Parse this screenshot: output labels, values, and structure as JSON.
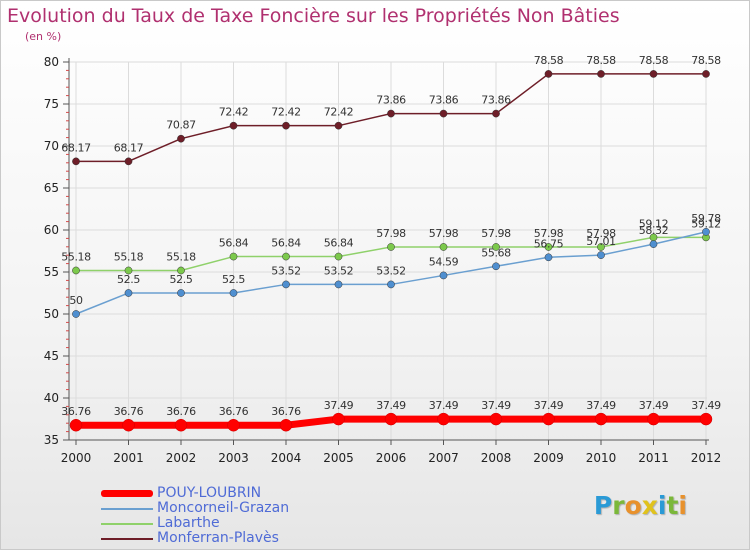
{
  "title": "Evolution du Taux de Taxe Foncière sur les Propriétés Non Bâties",
  "unit": "(en %)",
  "logo": {
    "letters": [
      {
        "ch": "P",
        "color": "#2a9ad6"
      },
      {
        "ch": "r",
        "color": "#7bb83a"
      },
      {
        "ch": "o",
        "color": "#e8912c"
      },
      {
        "ch": "x",
        "color": "#e0c21c"
      },
      {
        "ch": "i",
        "color": "#2a9ad6"
      },
      {
        "ch": "t",
        "color": "#7bb83a"
      },
      {
        "ch": "i",
        "color": "#e8912c"
      }
    ]
  },
  "chart_data": {
    "type": "line",
    "title": "Evolution du Taux de Taxe Foncière sur les Propriétés Non Bâties",
    "ylabel": "(en %)",
    "xlabel": "",
    "x": [
      "2000",
      "2001",
      "2002",
      "2003",
      "2004",
      "2005",
      "2006",
      "2007",
      "2008",
      "2009",
      "2010",
      "2011",
      "2012"
    ],
    "ylim": [
      35,
      80
    ],
    "yticks": [
      "35",
      "40",
      "45",
      "50",
      "55",
      "60",
      "65",
      "70",
      "75",
      "80"
    ],
    "grid": true,
    "legend": "bottom-left",
    "series": [
      {
        "name": "POUY-LOUBRIN",
        "color": "#ff0000",
        "values": [
          36.76,
          36.76,
          36.76,
          36.76,
          36.76,
          37.49,
          37.49,
          37.49,
          37.49,
          37.49,
          37.49,
          37.49,
          37.49
        ],
        "labels": [
          "36.76",
          "36.76",
          "36.76",
          "36.76",
          "36.76",
          "37.49",
          "37.49",
          "37.49",
          "37.49",
          "37.49",
          "37.49",
          "37.49",
          "37.49"
        ]
      },
      {
        "name": "Moncorneil-Grazan",
        "color": "#6a9fd0",
        "values": [
          50,
          52.5,
          52.5,
          52.5,
          53.52,
          53.52,
          53.52,
          54.59,
          55.68,
          56.75,
          57.01,
          58.32,
          59.78
        ],
        "labels": [
          "50",
          "52.5",
          "52.5",
          "52.5",
          "53.52",
          "53.52",
          "53.52",
          "54.59",
          "55.68",
          "56.75",
          "57.01",
          "58.32",
          "59.78"
        ]
      },
      {
        "name": "Labarthe",
        "color": "#8fd16a",
        "values": [
          55.18,
          55.18,
          55.18,
          56.84,
          56.84,
          56.84,
          57.98,
          57.98,
          57.98,
          57.98,
          57.98,
          59.12,
          59.12
        ],
        "labels": [
          "55.18",
          "55.18",
          "55.18",
          "56.84",
          "56.84",
          "56.84",
          "57.98",
          "57.98",
          "57.98",
          "57.98",
          "57.98",
          "59.12",
          "59.12"
        ]
      },
      {
        "name": "Monferran-Plavès",
        "color": "#6e1e28",
        "values": [
          68.17,
          68.17,
          70.87,
          72.42,
          72.42,
          72.42,
          73.86,
          73.86,
          73.86,
          78.58,
          78.58,
          78.58,
          78.58
        ],
        "labels": [
          "68.17",
          "68.17",
          "70.87",
          "72.42",
          "72.42",
          "72.42",
          "73.86",
          "73.86",
          "73.86",
          "78.58",
          "78.58",
          "78.58",
          "78.58"
        ]
      }
    ]
  }
}
